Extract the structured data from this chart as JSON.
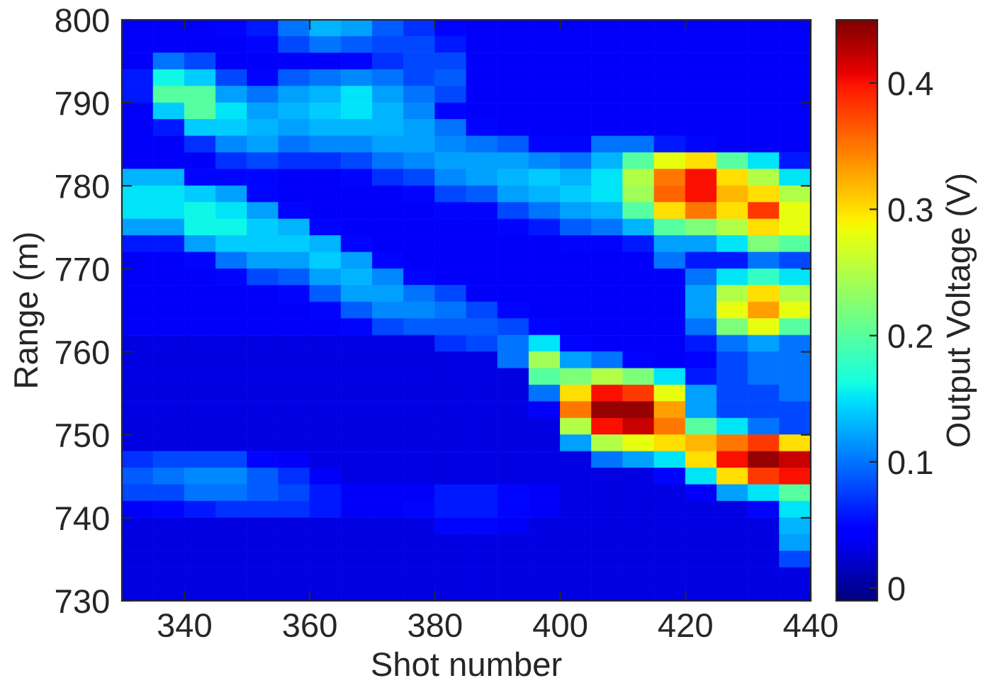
{
  "chart_data": {
    "type": "heatmap",
    "xlabel": "Shot number",
    "ylabel": "Range (m)",
    "clabel": "Output Voltage (V)",
    "cells": [
      [
        0.04,
        0.04,
        0.04,
        0.05,
        0.06,
        0.1,
        0.13,
        0.12,
        0.09,
        0.07,
        0.05,
        0.04,
        0.04,
        0.04,
        0.04,
        0.04,
        0.04,
        0.04,
        0.04,
        0.04,
        0.04,
        0.04
      ],
      [
        0.04,
        0.04,
        0.04,
        0.04,
        0.05,
        0.08,
        0.1,
        0.09,
        0.08,
        0.08,
        0.06,
        0.04,
        0.04,
        0.04,
        0.04,
        0.04,
        0.04,
        0.04,
        0.04,
        0.04,
        0.04,
        0.04
      ],
      [
        0.04,
        0.1,
        0.08,
        0.04,
        0.04,
        0.04,
        0.04,
        0.05,
        0.07,
        0.08,
        0.08,
        0.04,
        0.04,
        0.04,
        0.04,
        0.04,
        0.04,
        0.04,
        0.04,
        0.04,
        0.04,
        0.04
      ],
      [
        0.06,
        0.16,
        0.14,
        0.08,
        0.05,
        0.09,
        0.1,
        0.11,
        0.1,
        0.08,
        0.09,
        0.04,
        0.04,
        0.04,
        0.04,
        0.04,
        0.04,
        0.04,
        0.04,
        0.04,
        0.04,
        0.04
      ],
      [
        0.06,
        0.2,
        0.2,
        0.12,
        0.1,
        0.12,
        0.13,
        0.15,
        0.12,
        0.1,
        0.08,
        0.04,
        0.04,
        0.04,
        0.04,
        0.04,
        0.04,
        0.04,
        0.04,
        0.04,
        0.04,
        0.04
      ],
      [
        0.04,
        0.14,
        0.2,
        0.15,
        0.12,
        0.13,
        0.14,
        0.15,
        0.13,
        0.11,
        0.05,
        0.04,
        0.04,
        0.04,
        0.04,
        0.04,
        0.04,
        0.04,
        0.04,
        0.04,
        0.04,
        0.04
      ],
      [
        0.04,
        0.06,
        0.14,
        0.14,
        0.13,
        0.12,
        0.13,
        0.13,
        0.13,
        0.12,
        0.1,
        0.05,
        0.04,
        0.04,
        0.04,
        0.04,
        0.04,
        0.04,
        0.04,
        0.04,
        0.04,
        0.04
      ],
      [
        0.04,
        0.04,
        0.07,
        0.11,
        0.12,
        0.1,
        0.11,
        0.11,
        0.12,
        0.12,
        0.11,
        0.1,
        0.09,
        0.05,
        0.05,
        0.1,
        0.1,
        0.06,
        0.05,
        0.04,
        0.04,
        0.04
      ],
      [
        0.04,
        0.04,
        0.04,
        0.07,
        0.08,
        0.07,
        0.07,
        0.08,
        0.1,
        0.11,
        0.12,
        0.12,
        0.12,
        0.11,
        0.1,
        0.13,
        0.2,
        0.28,
        0.3,
        0.2,
        0.15,
        0.06
      ],
      [
        0.13,
        0.13,
        0.05,
        0.05,
        0.05,
        0.04,
        0.04,
        0.05,
        0.07,
        0.08,
        0.11,
        0.12,
        0.13,
        0.14,
        0.13,
        0.15,
        0.25,
        0.35,
        0.4,
        0.3,
        0.25,
        0.15
      ],
      [
        0.15,
        0.15,
        0.14,
        0.12,
        0.05,
        0.04,
        0.04,
        0.04,
        0.04,
        0.05,
        0.08,
        0.09,
        0.12,
        0.13,
        0.14,
        0.15,
        0.24,
        0.36,
        0.4,
        0.32,
        0.3,
        0.25
      ],
      [
        0.15,
        0.15,
        0.16,
        0.15,
        0.12,
        0.05,
        0.04,
        0.04,
        0.04,
        0.04,
        0.05,
        0.05,
        0.08,
        0.1,
        0.12,
        0.13,
        0.2,
        0.3,
        0.35,
        0.3,
        0.38,
        0.28
      ],
      [
        0.12,
        0.12,
        0.16,
        0.16,
        0.14,
        0.13,
        0.05,
        0.04,
        0.04,
        0.04,
        0.04,
        0.04,
        0.05,
        0.06,
        0.09,
        0.1,
        0.13,
        0.2,
        0.22,
        0.25,
        0.3,
        0.28
      ],
      [
        0.06,
        0.06,
        0.12,
        0.14,
        0.14,
        0.14,
        0.13,
        0.05,
        0.04,
        0.04,
        0.04,
        0.04,
        0.04,
        0.04,
        0.05,
        0.05,
        0.06,
        0.12,
        0.12,
        0.15,
        0.22,
        0.2
      ],
      [
        0.04,
        0.04,
        0.05,
        0.1,
        0.12,
        0.12,
        0.14,
        0.12,
        0.05,
        0.04,
        0.04,
        0.04,
        0.04,
        0.04,
        0.04,
        0.04,
        0.04,
        0.1,
        0.06,
        0.06,
        0.1,
        0.08
      ],
      [
        0.04,
        0.04,
        0.04,
        0.05,
        0.08,
        0.09,
        0.12,
        0.13,
        0.11,
        0.05,
        0.04,
        0.04,
        0.04,
        0.04,
        0.04,
        0.04,
        0.04,
        0.04,
        0.1,
        0.15,
        0.18,
        0.15
      ],
      [
        0.04,
        0.04,
        0.04,
        0.04,
        0.04,
        0.05,
        0.09,
        0.12,
        0.12,
        0.1,
        0.08,
        0.04,
        0.04,
        0.04,
        0.04,
        0.04,
        0.04,
        0.04,
        0.12,
        0.25,
        0.3,
        0.25
      ],
      [
        0.04,
        0.04,
        0.04,
        0.04,
        0.04,
        0.04,
        0.05,
        0.09,
        0.11,
        0.11,
        0.1,
        0.08,
        0.05,
        0.04,
        0.04,
        0.04,
        0.04,
        0.04,
        0.12,
        0.28,
        0.33,
        0.28
      ],
      [
        0.04,
        0.04,
        0.04,
        0.04,
        0.04,
        0.04,
        0.04,
        0.05,
        0.08,
        0.09,
        0.09,
        0.09,
        0.08,
        0.05,
        0.04,
        0.04,
        0.04,
        0.04,
        0.1,
        0.22,
        0.28,
        0.2
      ],
      [
        0.03,
        0.03,
        0.03,
        0.03,
        0.03,
        0.03,
        0.03,
        0.03,
        0.03,
        0.03,
        0.07,
        0.08,
        0.1,
        0.15,
        0.05,
        0.04,
        0.04,
        0.04,
        0.06,
        0.1,
        0.12,
        0.1
      ],
      [
        0.03,
        0.03,
        0.03,
        0.03,
        0.03,
        0.03,
        0.03,
        0.03,
        0.03,
        0.03,
        0.03,
        0.03,
        0.1,
        0.24,
        0.12,
        0.1,
        0.05,
        0.04,
        0.05,
        0.08,
        0.1,
        0.1
      ],
      [
        0.03,
        0.03,
        0.03,
        0.03,
        0.03,
        0.03,
        0.03,
        0.03,
        0.03,
        0.03,
        0.03,
        0.03,
        0.03,
        0.2,
        0.22,
        0.25,
        0.22,
        0.15,
        0.06,
        0.08,
        0.1,
        0.1
      ],
      [
        0.03,
        0.03,
        0.03,
        0.03,
        0.03,
        0.03,
        0.03,
        0.03,
        0.03,
        0.03,
        0.03,
        0.03,
        0.03,
        0.1,
        0.3,
        0.4,
        0.38,
        0.28,
        0.12,
        0.08,
        0.08,
        0.1
      ],
      [
        0.03,
        0.03,
        0.03,
        0.03,
        0.03,
        0.03,
        0.03,
        0.03,
        0.03,
        0.03,
        0.03,
        0.03,
        0.03,
        0.04,
        0.35,
        0.44,
        0.44,
        0.33,
        0.12,
        0.08,
        0.08,
        0.08
      ],
      [
        0.03,
        0.03,
        0.03,
        0.03,
        0.03,
        0.03,
        0.03,
        0.03,
        0.03,
        0.03,
        0.03,
        0.03,
        0.03,
        0.03,
        0.25,
        0.4,
        0.42,
        0.35,
        0.2,
        0.15,
        0.1,
        0.08
      ],
      [
        0.03,
        0.03,
        0.03,
        0.03,
        0.03,
        0.03,
        0.03,
        0.03,
        0.03,
        0.03,
        0.03,
        0.03,
        0.03,
        0.03,
        0.12,
        0.25,
        0.28,
        0.3,
        0.32,
        0.35,
        0.38,
        0.3
      ],
      [
        0.07,
        0.08,
        0.08,
        0.08,
        0.05,
        0.04,
        0.03,
        0.03,
        0.03,
        0.03,
        0.03,
        0.03,
        0.03,
        0.03,
        0.03,
        0.1,
        0.12,
        0.15,
        0.3,
        0.4,
        0.44,
        0.42
      ],
      [
        0.09,
        0.1,
        0.11,
        0.11,
        0.09,
        0.07,
        0.04,
        0.03,
        0.03,
        0.03,
        0.03,
        0.03,
        0.03,
        0.03,
        0.03,
        0.03,
        0.03,
        0.05,
        0.15,
        0.3,
        0.38,
        0.4
      ],
      [
        0.08,
        0.08,
        0.1,
        0.1,
        0.09,
        0.08,
        0.06,
        0.04,
        0.04,
        0.04,
        0.06,
        0.06,
        0.05,
        0.04,
        0.03,
        0.03,
        0.03,
        0.03,
        0.04,
        0.12,
        0.15,
        0.2
      ],
      [
        0.04,
        0.05,
        0.06,
        0.07,
        0.07,
        0.07,
        0.06,
        0.04,
        0.04,
        0.05,
        0.06,
        0.06,
        0.05,
        0.04,
        0.03,
        0.03,
        0.03,
        0.03,
        0.03,
        0.03,
        0.05,
        0.15
      ],
      [
        0.03,
        0.03,
        0.03,
        0.03,
        0.03,
        0.03,
        0.03,
        0.03,
        0.03,
        0.03,
        0.05,
        0.05,
        0.04,
        0.03,
        0.03,
        0.03,
        0.03,
        0.03,
        0.03,
        0.03,
        0.03,
        0.13
      ],
      [
        0.03,
        0.03,
        0.03,
        0.03,
        0.03,
        0.03,
        0.03,
        0.03,
        0.03,
        0.03,
        0.03,
        0.03,
        0.03,
        0.03,
        0.03,
        0.03,
        0.03,
        0.03,
        0.03,
        0.03,
        0.03,
        0.12
      ],
      [
        0.03,
        0.03,
        0.03,
        0.03,
        0.03,
        0.03,
        0.03,
        0.03,
        0.03,
        0.03,
        0.03,
        0.03,
        0.03,
        0.03,
        0.03,
        0.03,
        0.03,
        0.03,
        0.03,
        0.03,
        0.03,
        0.08
      ],
      [
        0.03,
        0.03,
        0.03,
        0.03,
        0.03,
        0.03,
        0.03,
        0.03,
        0.03,
        0.03,
        0.03,
        0.03,
        0.03,
        0.03,
        0.03,
        0.03,
        0.03,
        0.03,
        0.03,
        0.03,
        0.03,
        0.03
      ],
      [
        0.03,
        0.03,
        0.03,
        0.03,
        0.03,
        0.03,
        0.03,
        0.03,
        0.03,
        0.03,
        0.03,
        0.03,
        0.03,
        0.03,
        0.03,
        0.03,
        0.03,
        0.03,
        0.03,
        0.03,
        0.03,
        0.03
      ]
    ],
    "xlim": [
      330,
      440
    ],
    "xticks": [
      340,
      360,
      380,
      400,
      420,
      440
    ],
    "ylim": [
      730,
      800
    ],
    "yticks": [
      730,
      740,
      750,
      760,
      770,
      780,
      790,
      800
    ],
    "clim": [
      -0.01,
      0.45
    ],
    "cticks": [
      0,
      0.1,
      0.2,
      0.3,
      0.4
    ]
  }
}
